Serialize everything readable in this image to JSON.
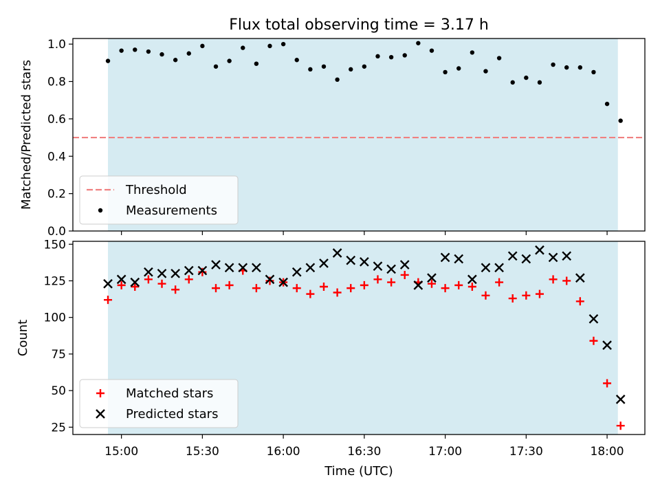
{
  "title": "Flux total observing time = 3.17 h",
  "colors": {
    "span": "#add8e6",
    "threshold": "#f08080",
    "measurement": "#000000",
    "matched": "#ff0000",
    "predicted": "#000000"
  },
  "chart_data": [
    {
      "type": "scatter",
      "ylabel": "Matched/Predicted stars",
      "ylim": [
        0,
        1.03
      ],
      "yticks": [
        0.0,
        0.2,
        0.4,
        0.6,
        0.8,
        1.0
      ],
      "ytick_labels": [
        "0.0",
        "0.2",
        "0.4",
        "0.6",
        "0.8",
        "1.0"
      ],
      "shaded_span": [
        "14:55",
        "18:04"
      ],
      "legend": {
        "position": "lower-left",
        "entries": [
          {
            "label": "Threshold",
            "marker": "dashed-line"
          },
          {
            "label": "Measurements",
            "marker": "dot"
          }
        ]
      },
      "threshold": 0.5,
      "series": [
        {
          "name": "Measurements",
          "x": [
            "14:55",
            "15:00",
            "15:05",
            "15:10",
            "15:15",
            "15:20",
            "15:25",
            "15:30",
            "15:35",
            "15:40",
            "15:45",
            "15:50",
            "15:55",
            "16:00",
            "16:05",
            "16:10",
            "16:15",
            "16:20",
            "16:25",
            "16:30",
            "16:35",
            "16:40",
            "16:45",
            "16:50",
            "16:55",
            "17:00",
            "17:05",
            "17:10",
            "17:15",
            "17:20",
            "17:25",
            "17:30",
            "17:35",
            "17:40",
            "17:45",
            "17:50",
            "17:55",
            "18:00",
            "18:05"
          ],
          "y": [
            0.91,
            0.965,
            0.97,
            0.96,
            0.945,
            0.915,
            0.95,
            0.99,
            0.88,
            0.91,
            0.98,
            0.895,
            0.99,
            1.0,
            0.915,
            0.865,
            0.88,
            0.81,
            0.865,
            0.88,
            0.935,
            0.93,
            0.94,
            1.005,
            0.965,
            0.85,
            0.87,
            0.955,
            0.855,
            0.925,
            0.795,
            0.82,
            0.795,
            0.89,
            0.875,
            0.875,
            0.85,
            0.68,
            0.59
          ]
        }
      ]
    },
    {
      "type": "scatter",
      "xlabel": "Time (UTC)",
      "ylabel": "Count",
      "ylim": [
        20,
        152
      ],
      "yticks": [
        25,
        50,
        75,
        100,
        125,
        150
      ],
      "ytick_labels": [
        "25",
        "50",
        "75",
        "100",
        "125",
        "150"
      ],
      "xticks": [
        "15:00",
        "15:30",
        "16:00",
        "16:30",
        "17:00",
        "17:30",
        "18:00"
      ],
      "shaded_span": [
        "14:55",
        "18:04"
      ],
      "legend": {
        "position": "lower-left",
        "entries": [
          {
            "label": "Matched stars",
            "marker": "plus"
          },
          {
            "label": "Predicted stars",
            "marker": "x"
          }
        ]
      },
      "series": [
        {
          "name": "Matched stars",
          "x": [
            "14:55",
            "15:00",
            "15:05",
            "15:10",
            "15:15",
            "15:20",
            "15:25",
            "15:30",
            "15:35",
            "15:40",
            "15:45",
            "15:50",
            "15:55",
            "16:00",
            "16:05",
            "16:10",
            "16:15",
            "16:20",
            "16:25",
            "16:30",
            "16:35",
            "16:40",
            "16:45",
            "16:50",
            "16:55",
            "17:00",
            "17:05",
            "17:10",
            "17:15",
            "17:20",
            "17:25",
            "17:30",
            "17:35",
            "17:40",
            "17:45",
            "17:50",
            "17:55",
            "18:00",
            "18:05"
          ],
          "y": [
            112,
            122,
            121,
            126,
            123,
            119,
            126,
            131,
            120,
            122,
            132,
            120,
            125,
            124,
            120,
            116,
            121,
            117,
            120,
            122,
            126,
            124,
            129,
            124,
            123,
            120,
            122,
            121,
            115,
            124,
            113,
            115,
            116,
            126,
            125,
            111,
            84,
            55,
            26
          ]
        },
        {
          "name": "Predicted stars",
          "x": [
            "14:55",
            "15:00",
            "15:05",
            "15:10",
            "15:15",
            "15:20",
            "15:25",
            "15:30",
            "15:35",
            "15:40",
            "15:45",
            "15:50",
            "15:55",
            "16:00",
            "16:05",
            "16:10",
            "16:15",
            "16:20",
            "16:25",
            "16:30",
            "16:35",
            "16:40",
            "16:45",
            "16:50",
            "16:55",
            "17:00",
            "17:05",
            "17:10",
            "17:15",
            "17:20",
            "17:25",
            "17:30",
            "17:35",
            "17:40",
            "17:45",
            "17:50",
            "17:55",
            "18:00",
            "18:05"
          ],
          "y": [
            123,
            126,
            124,
            131,
            130,
            130,
            132,
            132,
            136,
            134,
            134,
            134,
            126,
            124,
            131,
            134,
            137,
            144,
            139,
            138,
            135,
            133,
            136,
            122,
            127,
            141,
            140,
            126,
            134,
            134,
            142,
            140,
            146,
            141,
            142,
            127,
            99,
            81,
            44
          ]
        }
      ]
    }
  ]
}
